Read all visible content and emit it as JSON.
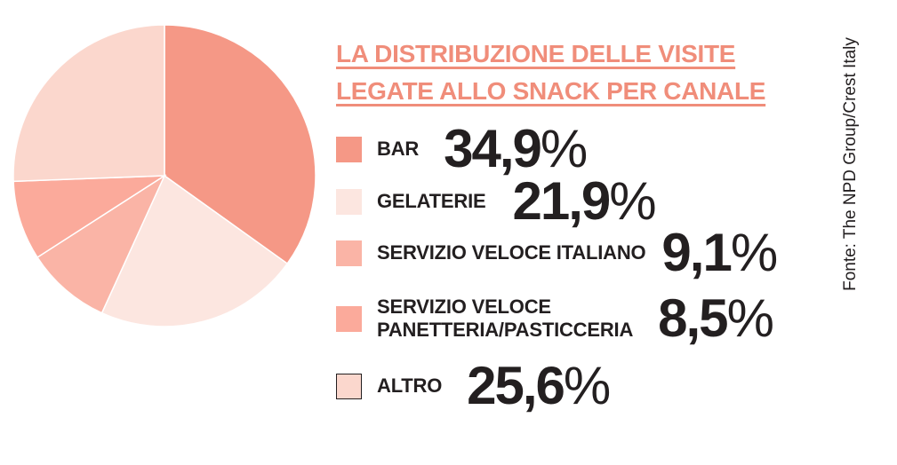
{
  "title_line1": "LA DISTRIBUZIONE DELLE VISITE",
  "title_line2": "LEGATE ALLO SNACK PER CANALE",
  "source": "Fonte: The NPD Group/Crest Italy",
  "colors": {
    "accent": "#f08d7a",
    "bar": "#f59886",
    "gelaterie": "#fce6e0",
    "servizio_italiano": "#fab4a6",
    "servizio_panetteria": "#fbaa9b",
    "altro": "#fbd7cd",
    "text": "#231f20"
  },
  "legend": [
    {
      "label": "BAR",
      "value": "34,9",
      "unit": "%"
    },
    {
      "label": "GELATERIE",
      "value": "21,9",
      "unit": "%"
    },
    {
      "label": "SERVIZIO VELOCE ITALIANO",
      "value": "9,1",
      "unit": "%"
    },
    {
      "label_line1": "SERVIZIO VELOCE",
      "label_line2": "PANETTERIA/PASTICCERIA",
      "value": "8,5",
      "unit": "%"
    },
    {
      "label": "ALTRO",
      "value": "25,6",
      "unit": "%"
    }
  ],
  "chart_data": {
    "type": "pie",
    "title": "LA DISTRIBUZIONE DELLE VISITE LEGATE ALLO SNACK PER CANALE",
    "categories": [
      "BAR",
      "GELATERIE",
      "SERVIZIO VELOCE ITALIANO",
      "SERVIZIO VELOCE PANETTERIA/PASTICCERIA",
      "ALTRO"
    ],
    "values": [
      34.9,
      21.9,
      9.1,
      8.5,
      25.6
    ],
    "unit": "%",
    "start_angle_deg": 0,
    "direction": "clockwise",
    "legend_position": "right"
  }
}
